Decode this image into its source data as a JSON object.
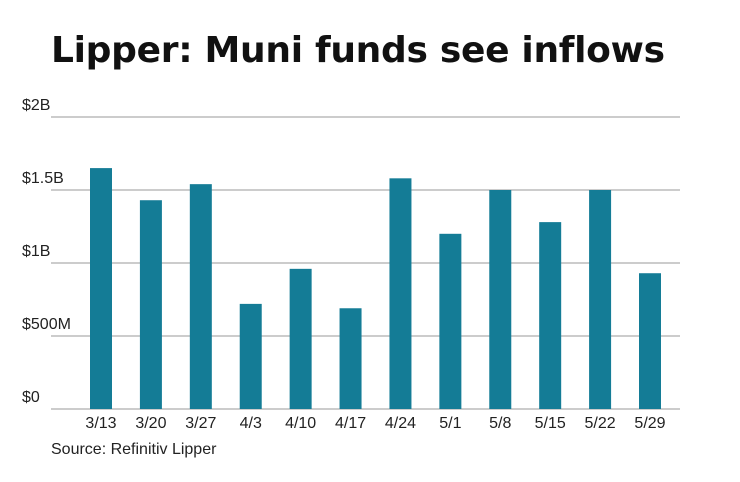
{
  "title": "Lipper: Muni funds see inflows",
  "source": "Source: Refinitiv Lipper",
  "colors": {
    "bar": "#147c96",
    "grid": "#9a9a9a",
    "text": "#222222"
  },
  "chart_data": {
    "type": "bar",
    "title": "Lipper: Muni funds see inflows",
    "xlabel": "",
    "ylabel": "",
    "categories": [
      "3/13",
      "3/20",
      "3/27",
      "4/3",
      "4/10",
      "4/17",
      "4/24",
      "5/1",
      "5/8",
      "5/15",
      "5/22",
      "5/29"
    ],
    "values": [
      1650,
      1430,
      1540,
      720,
      960,
      690,
      1580,
      1200,
      1500,
      1280,
      1500,
      930
    ],
    "unit": "millions of dollars",
    "ylim": [
      0,
      2000
    ],
    "yticks": [
      {
        "value": 0,
        "label": "$0"
      },
      {
        "value": 500,
        "label": "$500M"
      },
      {
        "value": 1000,
        "label": "$1B"
      },
      {
        "value": 1500,
        "label": "$1.5B"
      },
      {
        "value": 2000,
        "label": "$2B"
      }
    ],
    "grid": true,
    "legend": "none"
  }
}
